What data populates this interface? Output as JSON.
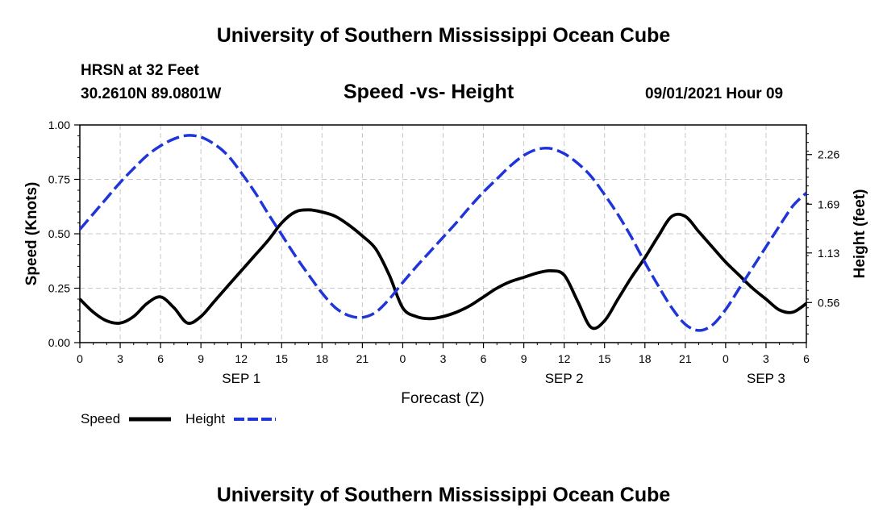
{
  "header": {
    "title_top": "University of Southern Mississippi Ocean Cube",
    "station": "HRSN at 32 Feet",
    "coords": "30.2610N  89.0801W",
    "chart_title": "Speed -vs- Height",
    "datetime": "09/01/2021 Hour 09",
    "title_bottom": "University of Southern Mississippi Ocean Cube"
  },
  "chart_data": {
    "type": "line",
    "title": "Speed -vs- Height",
    "xlabel": "Forecast (Z)",
    "ylabel": "Speed (Knots)",
    "y2label": "Height (feet)",
    "xlim": [
      0,
      54
    ],
    "ylim": [
      0,
      1
    ],
    "y2lim": [
      0.1,
      2.6
    ],
    "x_ticks": [
      0,
      3,
      6,
      9,
      12,
      15,
      18,
      21,
      24,
      27,
      30,
      33,
      36,
      39,
      42,
      45,
      48,
      51,
      54
    ],
    "x_tick_labels": [
      "0",
      "3",
      "6",
      "9",
      "12",
      "15",
      "18",
      "21",
      "0",
      "3",
      "6",
      "9",
      "12",
      "15",
      "18",
      "21",
      "0",
      "3",
      "6"
    ],
    "date_labels": [
      {
        "x": 12,
        "label": "SEP 1"
      },
      {
        "x": 36,
        "label": "SEP 2"
      },
      {
        "x": 51,
        "label": "SEP 3"
      }
    ],
    "y_ticks": [
      0,
      0.25,
      0.5,
      0.75,
      1.0
    ],
    "y_tick_labels": [
      "0.00",
      "0.25",
      "0.50",
      "0.75",
      "1.00"
    ],
    "y2_ticks": [
      0.56,
      1.13,
      1.69,
      2.26
    ],
    "y2_tick_labels": [
      "0.56",
      "1.13",
      "1.69",
      "2.26"
    ],
    "grid": true,
    "legend_placement": "bottom-left",
    "series": [
      {
        "name": "Speed",
        "axis": "left",
        "color": "#000000",
        "dash": false,
        "x": [
          0,
          1,
          2,
          3,
          4,
          5,
          6,
          7,
          8,
          9,
          10,
          11,
          12,
          13,
          14,
          15,
          16,
          17,
          18,
          19,
          20,
          21,
          22,
          23,
          24,
          25,
          26,
          27,
          28,
          29,
          30,
          31,
          32,
          33,
          34,
          35,
          36,
          37,
          38,
          39,
          40,
          41,
          42,
          43,
          44,
          45,
          46,
          47,
          48,
          49,
          50,
          51,
          52,
          53,
          54
        ],
        "values": [
          0.2,
          0.14,
          0.1,
          0.09,
          0.12,
          0.18,
          0.21,
          0.16,
          0.09,
          0.12,
          0.19,
          0.26,
          0.33,
          0.4,
          0.47,
          0.55,
          0.6,
          0.61,
          0.6,
          0.58,
          0.54,
          0.49,
          0.43,
          0.31,
          0.16,
          0.12,
          0.11,
          0.12,
          0.14,
          0.17,
          0.21,
          0.25,
          0.28,
          0.3,
          0.32,
          0.33,
          0.31,
          0.19,
          0.07,
          0.1,
          0.2,
          0.3,
          0.39,
          0.49,
          0.58,
          0.58,
          0.51,
          0.44,
          0.37,
          0.31,
          0.25,
          0.2,
          0.15,
          0.14,
          0.18
        ]
      },
      {
        "name": "Height",
        "axis": "right",
        "color": "#1f35d9",
        "dash": true,
        "x": [
          0,
          1,
          2,
          3,
          4,
          5,
          6,
          7,
          8,
          9,
          10,
          11,
          12,
          13,
          14,
          15,
          16,
          17,
          18,
          19,
          20,
          21,
          22,
          23,
          24,
          25,
          26,
          27,
          28,
          29,
          30,
          31,
          32,
          33,
          34,
          35,
          36,
          37,
          38,
          39,
          40,
          41,
          42,
          43,
          44,
          45,
          46,
          47,
          48,
          49,
          50,
          51,
          52,
          53,
          54
        ],
        "values": [
          1.4,
          1.58,
          1.76,
          1.94,
          2.1,
          2.25,
          2.36,
          2.44,
          2.48,
          2.46,
          2.38,
          2.25,
          2.05,
          1.83,
          1.58,
          1.34,
          1.1,
          0.88,
          0.67,
          0.5,
          0.41,
          0.39,
          0.45,
          0.6,
          0.79,
          0.97,
          1.14,
          1.31,
          1.48,
          1.66,
          1.83,
          1.98,
          2.13,
          2.25,
          2.32,
          2.33,
          2.27,
          2.16,
          2.01,
          1.8,
          1.57,
          1.31,
          1.02,
          0.75,
          0.5,
          0.31,
          0.24,
          0.3,
          0.48,
          0.72,
          0.96,
          1.2,
          1.44,
          1.67,
          1.82
        ]
      }
    ]
  },
  "legend": {
    "speed_label": "Speed",
    "height_label": "Height"
  },
  "colors": {
    "speed": "#000000",
    "height": "#1f35d9",
    "grid": "#c8c8c8"
  }
}
